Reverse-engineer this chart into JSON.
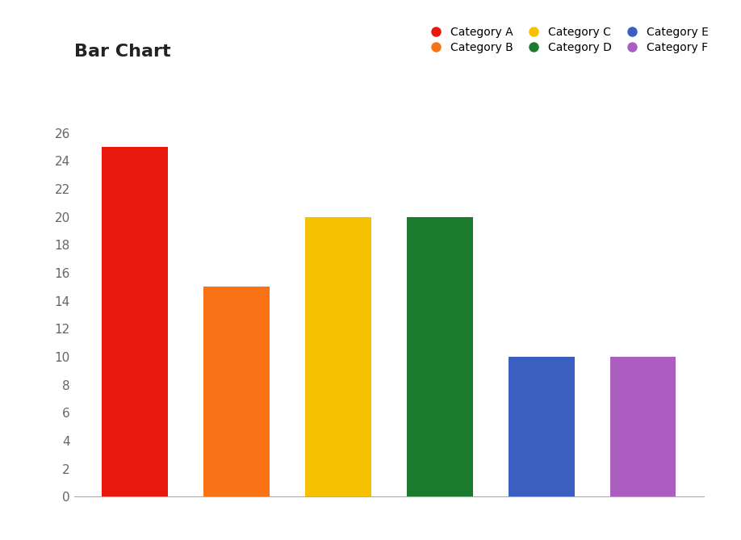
{
  "title": "Bar Chart",
  "categories": [
    "Category A",
    "Category B",
    "Category C",
    "Category D",
    "Category E",
    "Category F"
  ],
  "values": [
    25,
    15,
    20,
    20,
    10,
    10
  ],
  "bar_colors": [
    "#e8180c",
    "#f97316",
    "#f5c100",
    "#1a7a2e",
    "#3b5fc0",
    "#ab5ec0"
  ],
  "legend_order": [
    0,
    1,
    2,
    3,
    4,
    5
  ],
  "ylim": [
    0,
    27
  ],
  "yticks": [
    0,
    2,
    4,
    6,
    8,
    10,
    12,
    14,
    16,
    18,
    20,
    22,
    24,
    26
  ],
  "background_color": "#ffffff",
  "title_fontsize": 16,
  "title_fontweight": "bold",
  "legend_ncol": 3,
  "bar_width": 0.65,
  "figsize": [
    9.18,
    6.69
  ],
  "dpi": 100
}
